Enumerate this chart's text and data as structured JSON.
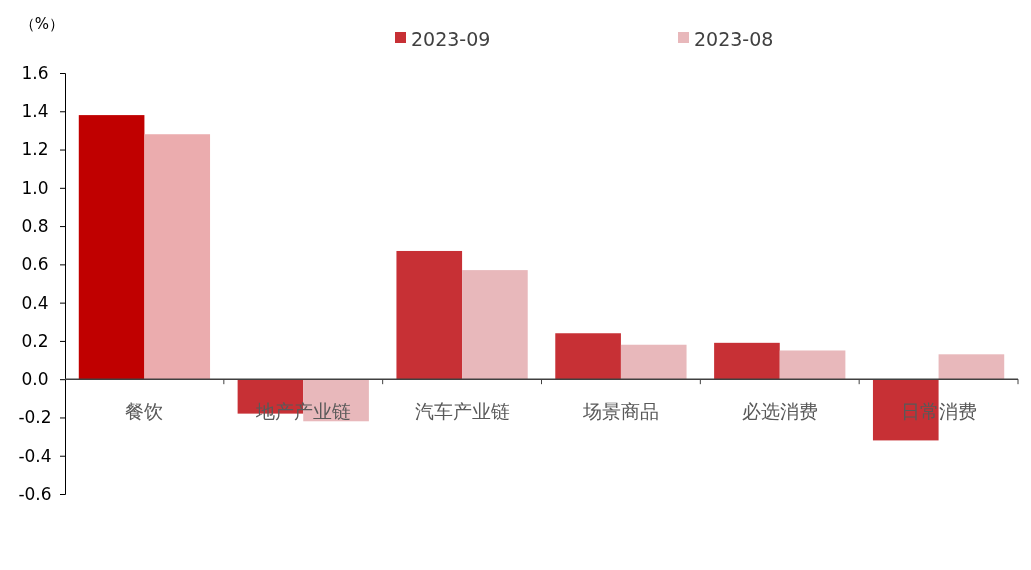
{
  "chart_data": {
    "type": "bar",
    "ylabel": "（%）",
    "categories": [
      "餐饮",
      "地产产业链",
      "汽车产业链",
      "场景商品",
      "必选消费",
      "日常消费"
    ],
    "series": [
      {
        "name": "2023-09",
        "color": "#c73035",
        "colors": [
          "#c00000",
          "#c73035",
          "#c73035",
          "#c73035",
          "#c73035",
          "#c73035"
        ],
        "values": [
          1.38,
          -0.18,
          0.67,
          0.24,
          0.19,
          -0.32
        ]
      },
      {
        "name": "2023-08",
        "color": "#e8b8bb",
        "colors": [
          "#ebacae",
          "#e8b8bb",
          "#e8b8bb",
          "#e8b8bb",
          "#e8b8bb",
          "#e8b8bb"
        ],
        "values": [
          1.28,
          -0.22,
          0.57,
          0.18,
          0.15,
          0.13
        ]
      }
    ],
    "ylim": [
      -0.6,
      1.6
    ],
    "yticks": [
      {
        "value": -0.6,
        "label": "-0.6"
      },
      {
        "value": -0.4,
        "label": "-0.4"
      },
      {
        "value": -0.2,
        "label": "-0.2"
      },
      {
        "value": 0,
        "label": "0.0"
      },
      {
        "value": 0.2,
        "label": "0.2"
      },
      {
        "value": 0.4,
        "label": "0.4"
      },
      {
        "value": 0.6,
        "label": "0.6"
      },
      {
        "value": 0.8,
        "label": "0.8"
      },
      {
        "value": 1,
        "label": "1.0"
      },
      {
        "value": 1.2,
        "label": "1.2"
      },
      {
        "value": 1.4,
        "label": "1.4"
      },
      {
        "value": 1.6,
        "label": "1.6"
      }
    ],
    "legend": "top",
    "grid": false
  }
}
